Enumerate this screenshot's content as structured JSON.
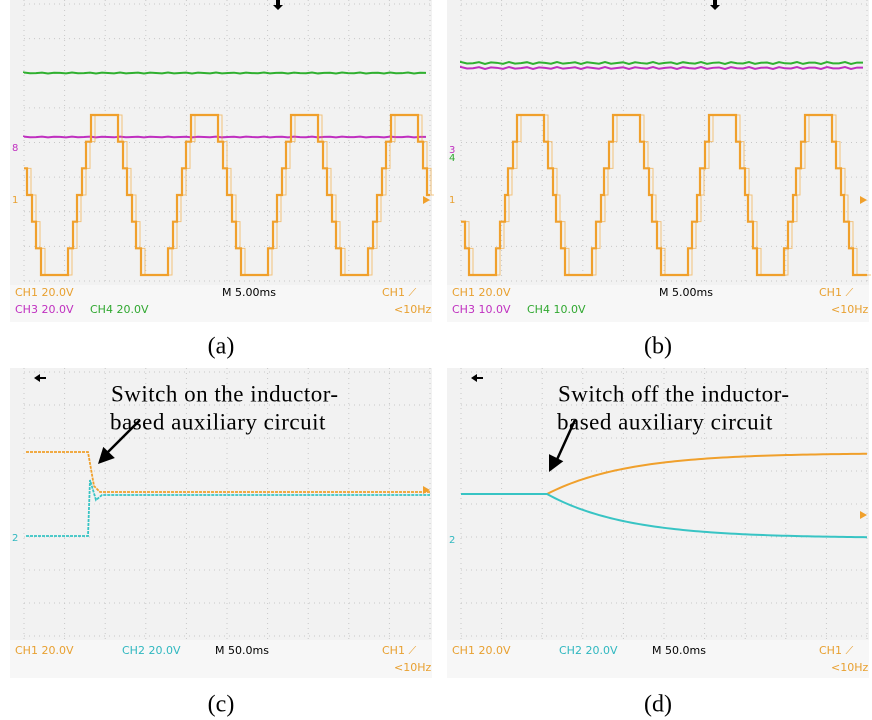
{
  "panels": [
    {
      "caption": "(a)",
      "readouts": [
        {
          "text": "CH1  20.0V",
          "color": "#e8a030"
        },
        {
          "text": "M 5.00ms",
          "color": "#000000"
        },
        {
          "text": "CH1 ⟋",
          "color": "#e8a030"
        },
        {
          "text": "CH3  20.0V",
          "color": "#c030c0"
        },
        {
          "text": "CH4  20.0V",
          "color": "#30a830"
        },
        {
          "text": "<10Hz",
          "color": "#e8a030"
        }
      ],
      "markers": [
        {
          "text": "8",
          "color": "#c030c0"
        },
        {
          "text": "1",
          "color": "#e8a030"
        }
      ]
    },
    {
      "caption": "(b)",
      "readouts": [
        {
          "text": "CH1  20.0V",
          "color": "#e8a030"
        },
        {
          "text": "M 5.00ms",
          "color": "#000000"
        },
        {
          "text": "CH1 ⟋",
          "color": "#e8a030"
        },
        {
          "text": "CH3  10.0V",
          "color": "#c030c0"
        },
        {
          "text": "CH4  10.0V",
          "color": "#30a830"
        },
        {
          "text": "<10Hz",
          "color": "#e8a030"
        }
      ],
      "markers": [
        {
          "text": "3",
          "color": "#c030c0"
        },
        {
          "text": "4",
          "color": "#30a830"
        },
        {
          "text": "1",
          "color": "#e8a030"
        }
      ]
    },
    {
      "caption": "(c)",
      "readouts": [
        {
          "text": "CH1  20.0V",
          "color": "#e8a030"
        },
        {
          "text": "CH2  20.0V",
          "color": "#30b8c0"
        },
        {
          "text": "M 50.0ms",
          "color": "#000000"
        },
        {
          "text": "CH1 ⟋",
          "color": "#e8a030"
        },
        {
          "text": "<10Hz",
          "color": "#e8a030"
        }
      ],
      "markers": [
        {
          "text": "2",
          "color": "#30b8c0"
        }
      ],
      "annotation": [
        "Switch on the inductor-",
        "based auxiliary circuit"
      ]
    },
    {
      "caption": "(d)",
      "readouts": [
        {
          "text": "CH1  20.0V",
          "color": "#e8a030"
        },
        {
          "text": "CH2  20.0V",
          "color": "#30b8c0"
        },
        {
          "text": "M 50.0ms",
          "color": "#000000"
        },
        {
          "text": "CH1 ⟋",
          "color": "#e8a030"
        },
        {
          "text": "<10Hz",
          "color": "#e8a030"
        }
      ],
      "markers": [
        {
          "text": "2",
          "color": "#30b8c0"
        }
      ],
      "annotation": [
        "Switch off the inductor-",
        "based auxiliary circuit"
      ]
    }
  ]
}
